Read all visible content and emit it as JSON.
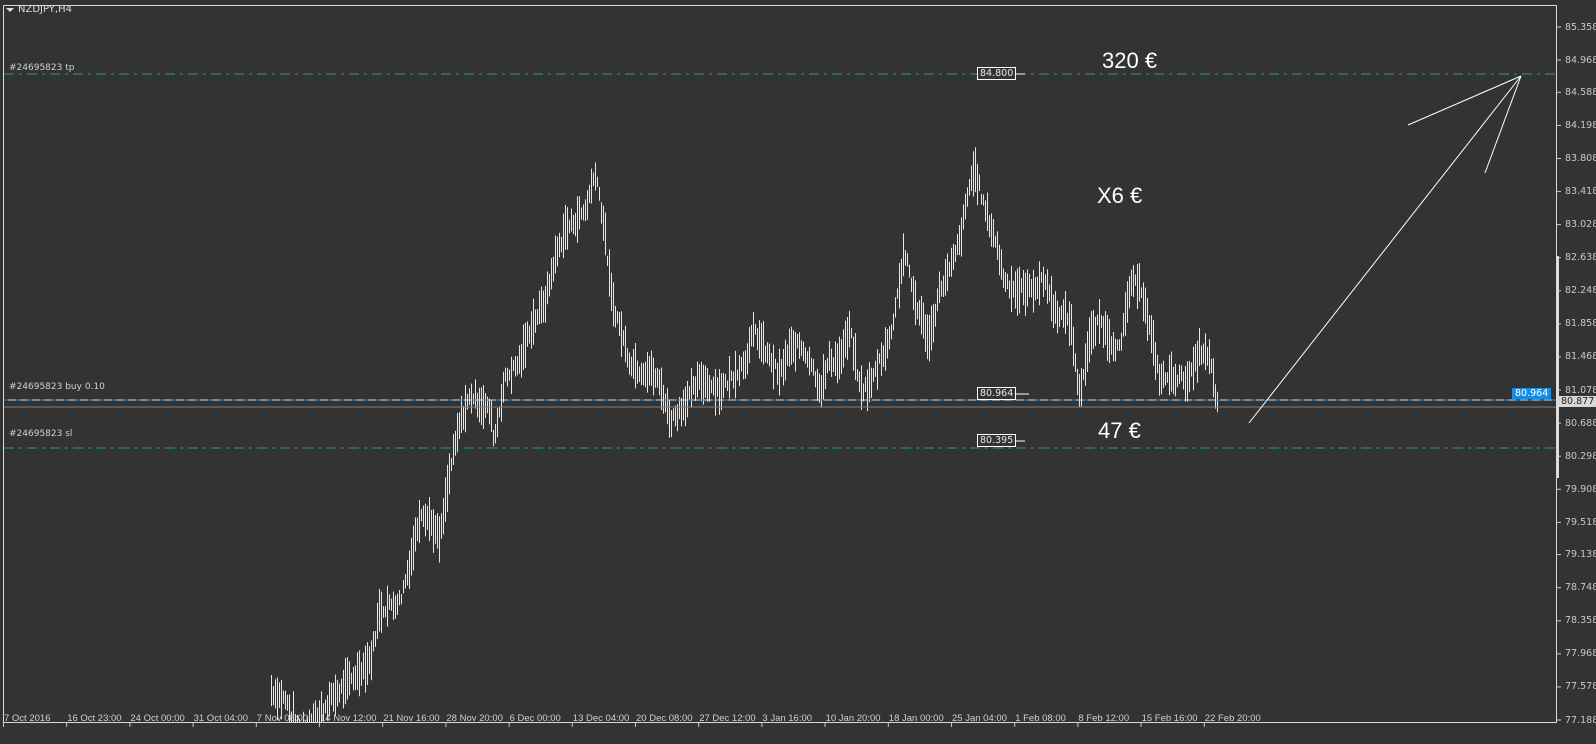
{
  "window": {
    "title": "NZDJPY,H4",
    "menu_icon": "triangle-down-icon"
  },
  "colors": {
    "background": "#333333",
    "bars": "#e6e6e6",
    "tp_sl_line": "#2a9a9a",
    "entry_line": "#1a8ce0",
    "bid_line": "#808080",
    "text": "#c8c8c8"
  },
  "orders": {
    "tp": {
      "label": "#24695823 tp",
      "price": 84.8,
      "price_label": "84.800"
    },
    "entry": {
      "label": "#24695823 buy 0.10",
      "price": 80.964,
      "price_label": "80.964"
    },
    "sl": {
      "label": "#24695823 sl",
      "price": 80.395,
      "price_label": "80.395"
    }
  },
  "bid": {
    "price": 80.877,
    "price_label": "80.877"
  },
  "annotations": {
    "tp_profit": "320 €",
    "middle": "X6 €",
    "sl_loss": "47 €"
  },
  "chart_data": {
    "type": "bar",
    "symbol": "NZDJPY",
    "timeframe": "H4",
    "ylim": [
      77.188,
      85.358
    ],
    "y_ticks": [
      "85.358",
      "84.968",
      "84.588",
      "84.198",
      "83.808",
      "83.418",
      "83.028",
      "82.638",
      "82.248",
      "81.858",
      "81.468",
      "81.078",
      "80.688",
      "80.298",
      "79.908",
      "79.518",
      "79.138",
      "78.748",
      "78.358",
      "77.968",
      "77.578",
      "77.188"
    ],
    "x_ticks": [
      "7 Oct 2016",
      "16 Oct 23:00",
      "24 Oct 00:00",
      "31 Oct 04:00",
      "7 Nov 08:00",
      "14 Nov 12:00",
      "21 Nov 16:00",
      "28 Nov 20:00",
      "6 Dec 00:00",
      "13 Dec 04:00",
      "20 Dec 08:00",
      "27 Dec 12:00",
      "3 Jan 16:00",
      "10 Jan 20:00",
      "18 Jan 00:00",
      "25 Jan 04:00",
      "1 Feb 08:00",
      "8 Feb 12:00",
      "15 Feb 16:00",
      "22 Feb 20:00"
    ],
    "grid": false,
    "price_path": [
      [
        "2016-11-09 00:00",
        77.54
      ],
      [
        "2016-11-10 16:00",
        77.42
      ],
      [
        "2016-11-12 08:00",
        77.01
      ],
      [
        "2016-11-14 00:00",
        77.19
      ],
      [
        "2016-11-15 16:00",
        77.42
      ],
      [
        "2016-11-18 00:00",
        77.66
      ],
      [
        "2016-11-20 08:00",
        77.9
      ],
      [
        "2016-11-21 08:00",
        78.48
      ],
      [
        "2016-11-23 16:00",
        78.6
      ],
      [
        "2016-11-24 20:00",
        79.07
      ],
      [
        "2016-11-26 00:00",
        79.66
      ],
      [
        "2016-11-27 00:00",
        79.55
      ],
      [
        "2016-11-28 04:00",
        79.31
      ],
      [
        "2016-11-29 08:00",
        80.14
      ],
      [
        "2016-11-30 12:00",
        80.72
      ],
      [
        "2016-12-01 16:00",
        81.02
      ],
      [
        "2016-12-03 20:00",
        80.84
      ],
      [
        "2016-12-04 08:00",
        80.49
      ],
      [
        "2016-12-05 12:00",
        81.2
      ],
      [
        "2016-12-07 08:00",
        81.43
      ],
      [
        "2016-12-08 08:00",
        81.79
      ],
      [
        "2016-12-10 04:00",
        82.14
      ],
      [
        "2016-12-11 04:00",
        82.61
      ],
      [
        "2016-12-12 08:00",
        82.96
      ],
      [
        "2016-12-13 12:00",
        83.08
      ],
      [
        "2016-12-14 16:00",
        83.2
      ],
      [
        "2016-12-15 20:00",
        83.67
      ],
      [
        "2016-12-16 08:00",
        83.32
      ],
      [
        "2016-12-16 20:00",
        82.96
      ],
      [
        "2016-12-17 16:00",
        82.14
      ],
      [
        "2016-12-18 16:00",
        81.79
      ],
      [
        "2016-12-19 16:00",
        81.43
      ],
      [
        "2016-12-20 20:00",
        81.31
      ],
      [
        "2016-12-22 00:00",
        81.31
      ],
      [
        "2016-12-23 04:00",
        81.14
      ],
      [
        "2016-12-24 08:00",
        80.72
      ],
      [
        "2016-12-25 08:00",
        80.84
      ],
      [
        "2016-12-26 12:00",
        81.02
      ],
      [
        "2016-12-27 16:00",
        81.2
      ],
      [
        "2016-12-28 20:00",
        81.14
      ],
      [
        "2016-12-30 00:00",
        81.08
      ],
      [
        "2016-12-31 00:00",
        81.2
      ],
      [
        "2017-01-01 20:00",
        81.43
      ],
      [
        "2017-01-02 20:00",
        81.79
      ],
      [
        "2017-01-04 00:00",
        81.55
      ],
      [
        "2017-01-05 16:00",
        81.25
      ],
      [
        "2017-01-06 20:00",
        81.55
      ],
      [
        "2017-01-08 00:00",
        81.61
      ],
      [
        "2017-01-09 04:00",
        81.43
      ],
      [
        "2017-01-10 08:00",
        81.08
      ],
      [
        "2017-01-11 08:00",
        81.43
      ],
      [
        "2017-01-12 12:00",
        81.43
      ],
      [
        "2017-01-13 16:00",
        81.79
      ],
      [
        "2017-01-14 20:00",
        81.08
      ],
      [
        "2017-01-16 00:00",
        81.14
      ],
      [
        "2017-01-17 00:00",
        81.43
      ],
      [
        "2017-01-18 04:00",
        81.67
      ],
      [
        "2017-01-19 08:00",
        82.38
      ],
      [
        "2017-01-19 20:00",
        82.73
      ],
      [
        "2017-01-21 00:00",
        82.14
      ],
      [
        "2017-01-22 16:00",
        81.67
      ],
      [
        "2017-01-23 20:00",
        82.26
      ],
      [
        "2017-01-25 00:00",
        82.49
      ],
      [
        "2017-01-26 04:00",
        82.85
      ],
      [
        "2017-01-27 08:00",
        83.55
      ],
      [
        "2017-01-27 20:00",
        83.67
      ],
      [
        "2017-01-29 00:00",
        83.2
      ],
      [
        "2017-01-30 04:00",
        82.85
      ],
      [
        "2017-01-31 04:00",
        82.38
      ],
      [
        "2017-02-01 08:00",
        82.26
      ],
      [
        "2017-02-03 00:00",
        82.26
      ],
      [
        "2017-02-04 20:00",
        82.38
      ],
      [
        "2017-02-05 20:00",
        82.02
      ],
      [
        "2017-02-07 16:00",
        81.9
      ],
      [
        "2017-02-08 16:00",
        81.02
      ],
      [
        "2017-02-09 20:00",
        81.67
      ],
      [
        "2017-02-11 00:00",
        81.9
      ],
      [
        "2017-02-12 04:00",
        81.67
      ],
      [
        "2017-02-13 08:00",
        81.55
      ],
      [
        "2017-02-14 08:00",
        82.26
      ],
      [
        "2017-02-15 12:00",
        82.38
      ],
      [
        "2017-02-16 16:00",
        81.79
      ],
      [
        "2017-02-17 20:00",
        81.2
      ],
      [
        "2017-02-19 00:00",
        81.25
      ],
      [
        "2017-02-21 04:00",
        81.2
      ],
      [
        "2017-02-22 08:00",
        81.55
      ],
      [
        "2017-02-23 12:00",
        81.43
      ],
      [
        "2017-02-24 08:00",
        80.9
      ]
    ]
  }
}
